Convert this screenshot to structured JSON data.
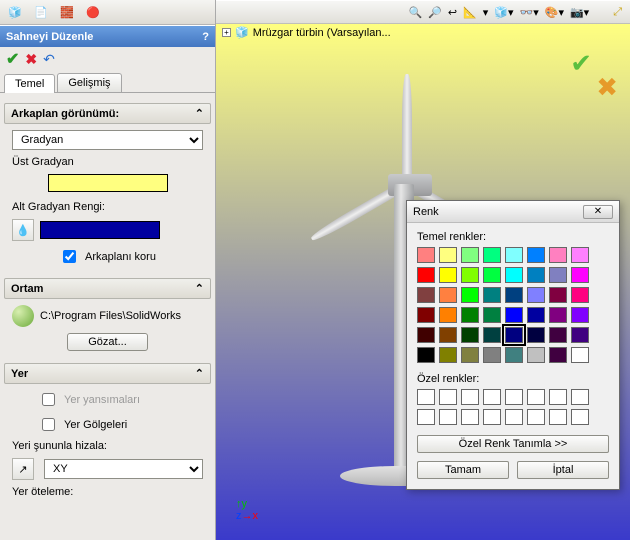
{
  "panel": {
    "title": "Sahneyi Düzenle",
    "tabs": {
      "basic": "Temel",
      "advanced": "Gelişmiş"
    },
    "background": {
      "heading": "Arkaplan görünümü:",
      "mode": "Gradyan",
      "top_label": "Üst Gradyan",
      "top_color": "#ffff80",
      "bottom_label": "Alt Gradyan Rengi:",
      "bottom_color": "#00009f",
      "keep_background": "Arkaplanı koru",
      "keep_background_checked": true
    },
    "environment": {
      "heading": "Ortam",
      "path": "C:\\Program Files\\SolidWorks",
      "browse": "Gözat..."
    },
    "floor": {
      "heading": "Yer",
      "reflections": "Yer yansımaları",
      "reflections_checked": false,
      "shadows": "Yer Gölgeleri",
      "shadows_checked": false,
      "align_label": "Yeri şununla hizala:",
      "align_value": "XY",
      "offset_label": "Yer öteleme:"
    }
  },
  "viewport": {
    "bg_top": "#ffff80",
    "bg_bottom": "#3a3acb",
    "tree_node": "Mrüzgar türbin  (Varsayılan..."
  },
  "color_dialog": {
    "title": "Renk",
    "basic_label": "Temel renkler:",
    "custom_label": "Özel renkler:",
    "define_custom": "Özel Renk Tanımla >>",
    "ok": "Tamam",
    "cancel": "İptal",
    "selected": "#000080",
    "basic_colors": [
      "#ff8080",
      "#ffff80",
      "#80ff80",
      "#00ff80",
      "#80ffff",
      "#0080ff",
      "#ff80c0",
      "#ff80ff",
      "#ff0000",
      "#ffff00",
      "#80ff00",
      "#00ff40",
      "#00ffff",
      "#0080c0",
      "#8080c0",
      "#ff00ff",
      "#804040",
      "#ff8040",
      "#00ff00",
      "#008080",
      "#004080",
      "#8080ff",
      "#800040",
      "#ff0080",
      "#800000",
      "#ff8000",
      "#008000",
      "#008040",
      "#0000ff",
      "#0000a0",
      "#800080",
      "#8000ff",
      "#400000",
      "#804000",
      "#004000",
      "#004040",
      "#000080",
      "#000040",
      "#400040",
      "#400080",
      "#000000",
      "#808000",
      "#808040",
      "#808080",
      "#408080",
      "#c0c0c0",
      "#400040",
      "#ffffff"
    ],
    "custom_colors": [
      "#ffffff",
      "#ffffff",
      "#ffffff",
      "#ffffff",
      "#ffffff",
      "#ffffff",
      "#ffffff",
      "#ffffff",
      "#ffffff",
      "#ffffff",
      "#ffffff",
      "#ffffff",
      "#ffffff",
      "#ffffff",
      "#ffffff",
      "#ffffff"
    ]
  }
}
